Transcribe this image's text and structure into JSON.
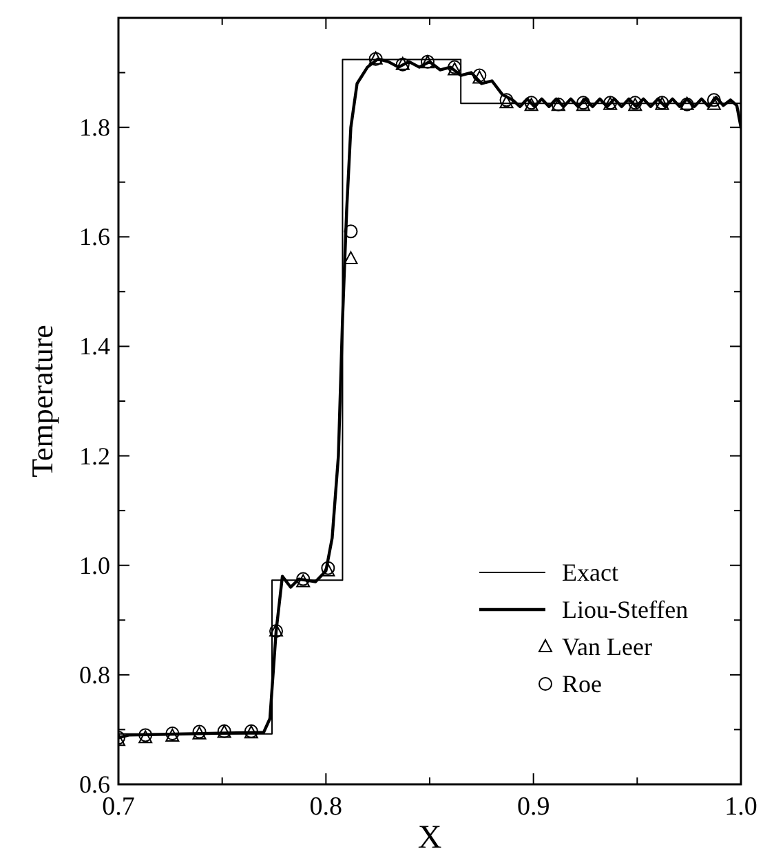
{
  "chart_data": {
    "type": "line",
    "xlabel": "X",
    "ylabel": "Temperature",
    "xlim": [
      0.7,
      1.0
    ],
    "ylim": [
      0.6,
      2.0
    ],
    "xticks": [
      0.7,
      {
        "value": 0.75,
        "label": null
      },
      0.8,
      {
        "value": 0.85,
        "label": null
      },
      0.9,
      {
        "value": 0.95,
        "label": null
      },
      {
        "value": 1,
        "label": "1.0"
      }
    ],
    "yticks": [
      0.6,
      {
        "value": 0.7,
        "label": null
      },
      0.8,
      {
        "value": 0.9,
        "label": null
      },
      {
        "value": 1,
        "label": "1.0"
      },
      {
        "value": 1.1,
        "label": null
      },
      1.2,
      {
        "value": 1.3,
        "label": null
      },
      1.4,
      {
        "value": 1.5,
        "label": null
      },
      1.6,
      {
        "value": 1.7,
        "label": null
      },
      1.8,
      {
        "value": 1.9,
        "label": null
      }
    ],
    "grid": false,
    "legend": "bottom right",
    "series": [
      {
        "name": "Exact",
        "color": "#000000",
        "line_style": "solid",
        "marker": "none",
        "x": [
          0.7,
          0.774,
          0.774,
          0.808,
          0.808,
          0.865,
          0.865,
          1.0
        ],
        "values": [
          0.692,
          0.692,
          0.973,
          0.973,
          1.924,
          1.924,
          1.844,
          1.844
        ]
      },
      {
        "name": "Liou-Steffen",
        "color": "#000000",
        "line_style": "solid",
        "marker": "none",
        "x": [
          0.7,
          0.705,
          0.77,
          0.773,
          0.776,
          0.779,
          0.783,
          0.787,
          0.795,
          0.8,
          0.803,
          0.806,
          0.808,
          0.81,
          0.812,
          0.815,
          0.82,
          0.825,
          0.83,
          0.835,
          0.84,
          0.845,
          0.85,
          0.855,
          0.86,
          0.865,
          0.87,
          0.875,
          0.88,
          0.885,
          0.89,
          0.8935,
          0.897,
          0.9005,
          0.904,
          0.9075,
          0.911,
          0.9145,
          0.918,
          0.9215,
          0.925,
          0.9285,
          0.932,
          0.9355,
          0.939,
          0.9425,
          0.946,
          0.9495,
          0.953,
          0.9565,
          0.96,
          0.9635,
          0.967,
          0.9705,
          0.974,
          0.9775,
          0.981,
          0.9845,
          0.988,
          0.9915,
          0.995,
          0.998,
          1.0
        ],
        "values": [
          0.685,
          0.69,
          0.695,
          0.72,
          0.88,
          0.98,
          0.96,
          0.975,
          0.97,
          0.99,
          1.05,
          1.2,
          1.45,
          1.65,
          1.8,
          1.88,
          1.91,
          1.925,
          1.92,
          1.91,
          1.92,
          1.91,
          1.92,
          1.905,
          1.91,
          1.895,
          1.9,
          1.88,
          1.885,
          1.86,
          1.85,
          1.838,
          1.852,
          1.838,
          1.852,
          1.838,
          1.852,
          1.838,
          1.852,
          1.838,
          1.852,
          1.838,
          1.852,
          1.838,
          1.852,
          1.838,
          1.852,
          1.838,
          1.852,
          1.838,
          1.852,
          1.838,
          1.852,
          1.838,
          1.852,
          1.838,
          1.852,
          1.838,
          1.855,
          1.84,
          1.85,
          1.84,
          1.8
        ]
      },
      {
        "name": "Van Leer",
        "type": "scatter",
        "color": "#000000",
        "marker": "triangle",
        "x": [
          0.7,
          0.713,
          0.726,
          0.739,
          0.751,
          0.764,
          0.776,
          0.789,
          0.801,
          0.812,
          0.824,
          0.837,
          0.849,
          0.862,
          0.874,
          0.887,
          0.899,
          0.912,
          0.924,
          0.937,
          0.949,
          0.962,
          0.974,
          0.987
        ],
        "values": [
          0.68,
          0.685,
          0.688,
          0.692,
          0.695,
          0.694,
          0.88,
          0.97,
          0.99,
          1.56,
          1.925,
          1.915,
          1.918,
          1.905,
          1.89,
          1.845,
          1.84,
          1.84,
          1.84,
          1.842,
          1.84,
          1.842,
          1.842,
          1.842
        ]
      },
      {
        "name": "Roe",
        "type": "scatter",
        "color": "#000000",
        "marker": "circle",
        "x": [
          0.7,
          0.713,
          0.726,
          0.739,
          0.751,
          0.764,
          0.776,
          0.789,
          0.801,
          0.812,
          0.824,
          0.837,
          0.849,
          0.862,
          0.874,
          0.887,
          0.899,
          0.912,
          0.924,
          0.937,
          0.949,
          0.962,
          0.974,
          0.987
        ],
        "values": [
          0.685,
          0.69,
          0.693,
          0.696,
          0.697,
          0.697,
          0.88,
          0.975,
          0.995,
          1.61,
          1.925,
          1.915,
          1.92,
          1.91,
          1.895,
          1.85,
          1.845,
          1.842,
          1.845,
          1.845,
          1.845,
          1.845,
          1.842,
          1.85
        ]
      }
    ]
  }
}
